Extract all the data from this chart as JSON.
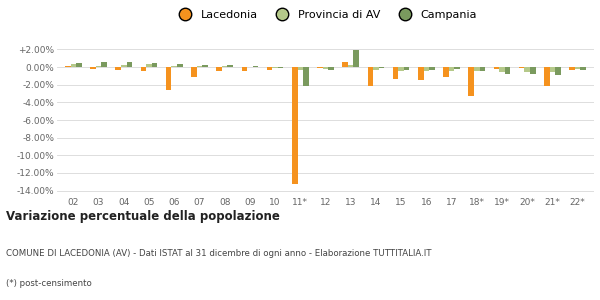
{
  "years": [
    "02",
    "03",
    "04",
    "05",
    "06",
    "07",
    "08",
    "09",
    "10",
    "11*",
    "12",
    "13",
    "14",
    "15",
    "16",
    "17",
    "18*",
    "19*",
    "20*",
    "21*",
    "22*"
  ],
  "lacedonia": [
    0.15,
    -0.25,
    -0.35,
    -0.5,
    -2.6,
    -1.1,
    -0.5,
    -0.4,
    -0.3,
    -13.3,
    -0.1,
    0.55,
    -2.2,
    -1.3,
    -1.5,
    -1.1,
    -3.3,
    -0.2,
    -0.1,
    -2.1,
    -0.3
  ],
  "provincia_av": [
    0.3,
    0.1,
    0.2,
    0.3,
    0.1,
    0.1,
    0.1,
    0.05,
    -0.05,
    -0.3,
    -0.25,
    0.25,
    -0.3,
    -0.5,
    -0.4,
    -0.4,
    -0.5,
    -0.6,
    -0.55,
    -0.55,
    -0.25
  ],
  "campania": [
    0.45,
    0.55,
    0.55,
    0.5,
    0.35,
    0.2,
    0.25,
    0.1,
    -0.05,
    -2.2,
    -0.35,
    1.9,
    -0.1,
    -0.35,
    -0.3,
    -0.25,
    -0.45,
    -0.75,
    -0.75,
    -0.85,
    -0.35
  ],
  "lacedonia_color": "#f5921e",
  "provincia_color": "#b5c98a",
  "campania_color": "#7a9a5e",
  "title": "Variazione percentuale della popolazione",
  "subtitle": "COMUNE DI LACEDONIA (AV) - Dati ISTAT al 31 dicembre di ogni anno - Elaborazione TUTTITALIA.IT",
  "footnote": "(*) post-censimento",
  "ylim": [
    -14.5,
    2.5
  ],
  "yticks": [
    2.0,
    0.0,
    -2.0,
    -4.0,
    -6.0,
    -8.0,
    -10.0,
    -12.0,
    -14.0
  ],
  "ytick_labels": [
    "+2.00%",
    "0.00%",
    "-2.00%",
    "-4.00%",
    "-6.00%",
    "-8.00%",
    "-10.00%",
    "-12.00%",
    "-14.00%"
  ],
  "background_color": "#ffffff",
  "grid_color": "#d8d8d8",
  "bar_width": 0.22
}
